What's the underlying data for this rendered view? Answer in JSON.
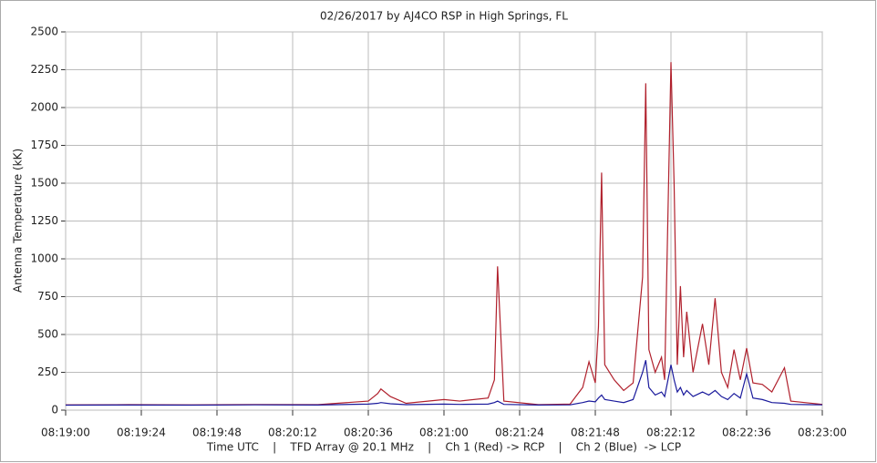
{
  "chart_data": {
    "type": "line",
    "title": "02/26/2017  by  AJ4CO RSP  in  High Springs, FL",
    "y_label": "Antenna Temperature (kK)",
    "x_label": "Time UTC    |    TFD Array @ 20.1 MHz    |    Ch 1 (Red) -> RCP    |    Ch 2 (Blue)  -> LCP",
    "x": [
      "08:19:00",
      "08:19:20",
      "08:19:40",
      "08:20:00",
      "08:20:20",
      "08:20:36",
      "08:20:39",
      "08:20:40",
      "08:20:43",
      "08:20:48",
      "08:21:00",
      "08:21:05",
      "08:21:14",
      "08:21:16",
      "08:21:17",
      "08:21:19",
      "08:21:30",
      "08:21:40",
      "08:21:44",
      "08:21:46",
      "08:21:48",
      "08:21:49",
      "08:21:50",
      "08:21:51",
      "08:21:54",
      "08:21:57",
      "08:22:00",
      "08:22:03",
      "08:22:04",
      "08:22:05",
      "08:22:07",
      "08:22:09",
      "08:22:10",
      "08:22:12",
      "08:22:13",
      "08:22:14",
      "08:22:15",
      "08:22:16",
      "08:22:17",
      "08:22:19",
      "08:22:22",
      "08:22:24",
      "08:22:26",
      "08:22:28",
      "08:22:30",
      "08:22:32",
      "08:22:34",
      "08:22:36",
      "08:22:38",
      "08:22:41",
      "08:22:44",
      "08:22:48",
      "08:22:50",
      "08:23:00"
    ],
    "series": [
      {
        "name": "Ch 1 (Red)",
        "color": "#b0202c",
        "values": [
          35,
          36,
          35,
          37,
          36,
          60,
          110,
          140,
          90,
          45,
          70,
          60,
          80,
          200,
          950,
          60,
          36,
          40,
          150,
          320,
          180,
          550,
          1570,
          300,
          200,
          130,
          180,
          880,
          2160,
          400,
          250,
          350,
          200,
          2300,
          1490,
          300,
          820,
          350,
          650,
          250,
          570,
          300,
          740,
          250,
          150,
          400,
          200,
          410,
          180,
          170,
          120,
          280,
          60,
          38
        ]
      },
      {
        "name": "Ch 2 (Blue)",
        "color": "#1a1a9c",
        "values": [
          33,
          34,
          33,
          35,
          34,
          40,
          45,
          50,
          42,
          36,
          40,
          38,
          40,
          50,
          60,
          38,
          34,
          35,
          50,
          60,
          55,
          80,
          100,
          70,
          60,
          50,
          70,
          250,
          330,
          150,
          100,
          120,
          90,
          300,
          200,
          120,
          150,
          100,
          130,
          90,
          120,
          100,
          130,
          90,
          70,
          110,
          80,
          240,
          80,
          70,
          50,
          45,
          38,
          35
        ]
      }
    ],
    "xlim": [
      "08:19:00",
      "08:23:00"
    ],
    "xticks": [
      "08:19:00",
      "08:19:24",
      "08:19:48",
      "08:20:12",
      "08:20:36",
      "08:21:00",
      "08:21:24",
      "08:21:48",
      "08:22:12",
      "08:22:36",
      "08:23:00"
    ],
    "ylim": [
      0,
      2500
    ],
    "yticks": [
      0,
      250,
      500,
      750,
      1000,
      1250,
      1500,
      1750,
      2000,
      2250,
      2500
    ],
    "grid": true
  }
}
